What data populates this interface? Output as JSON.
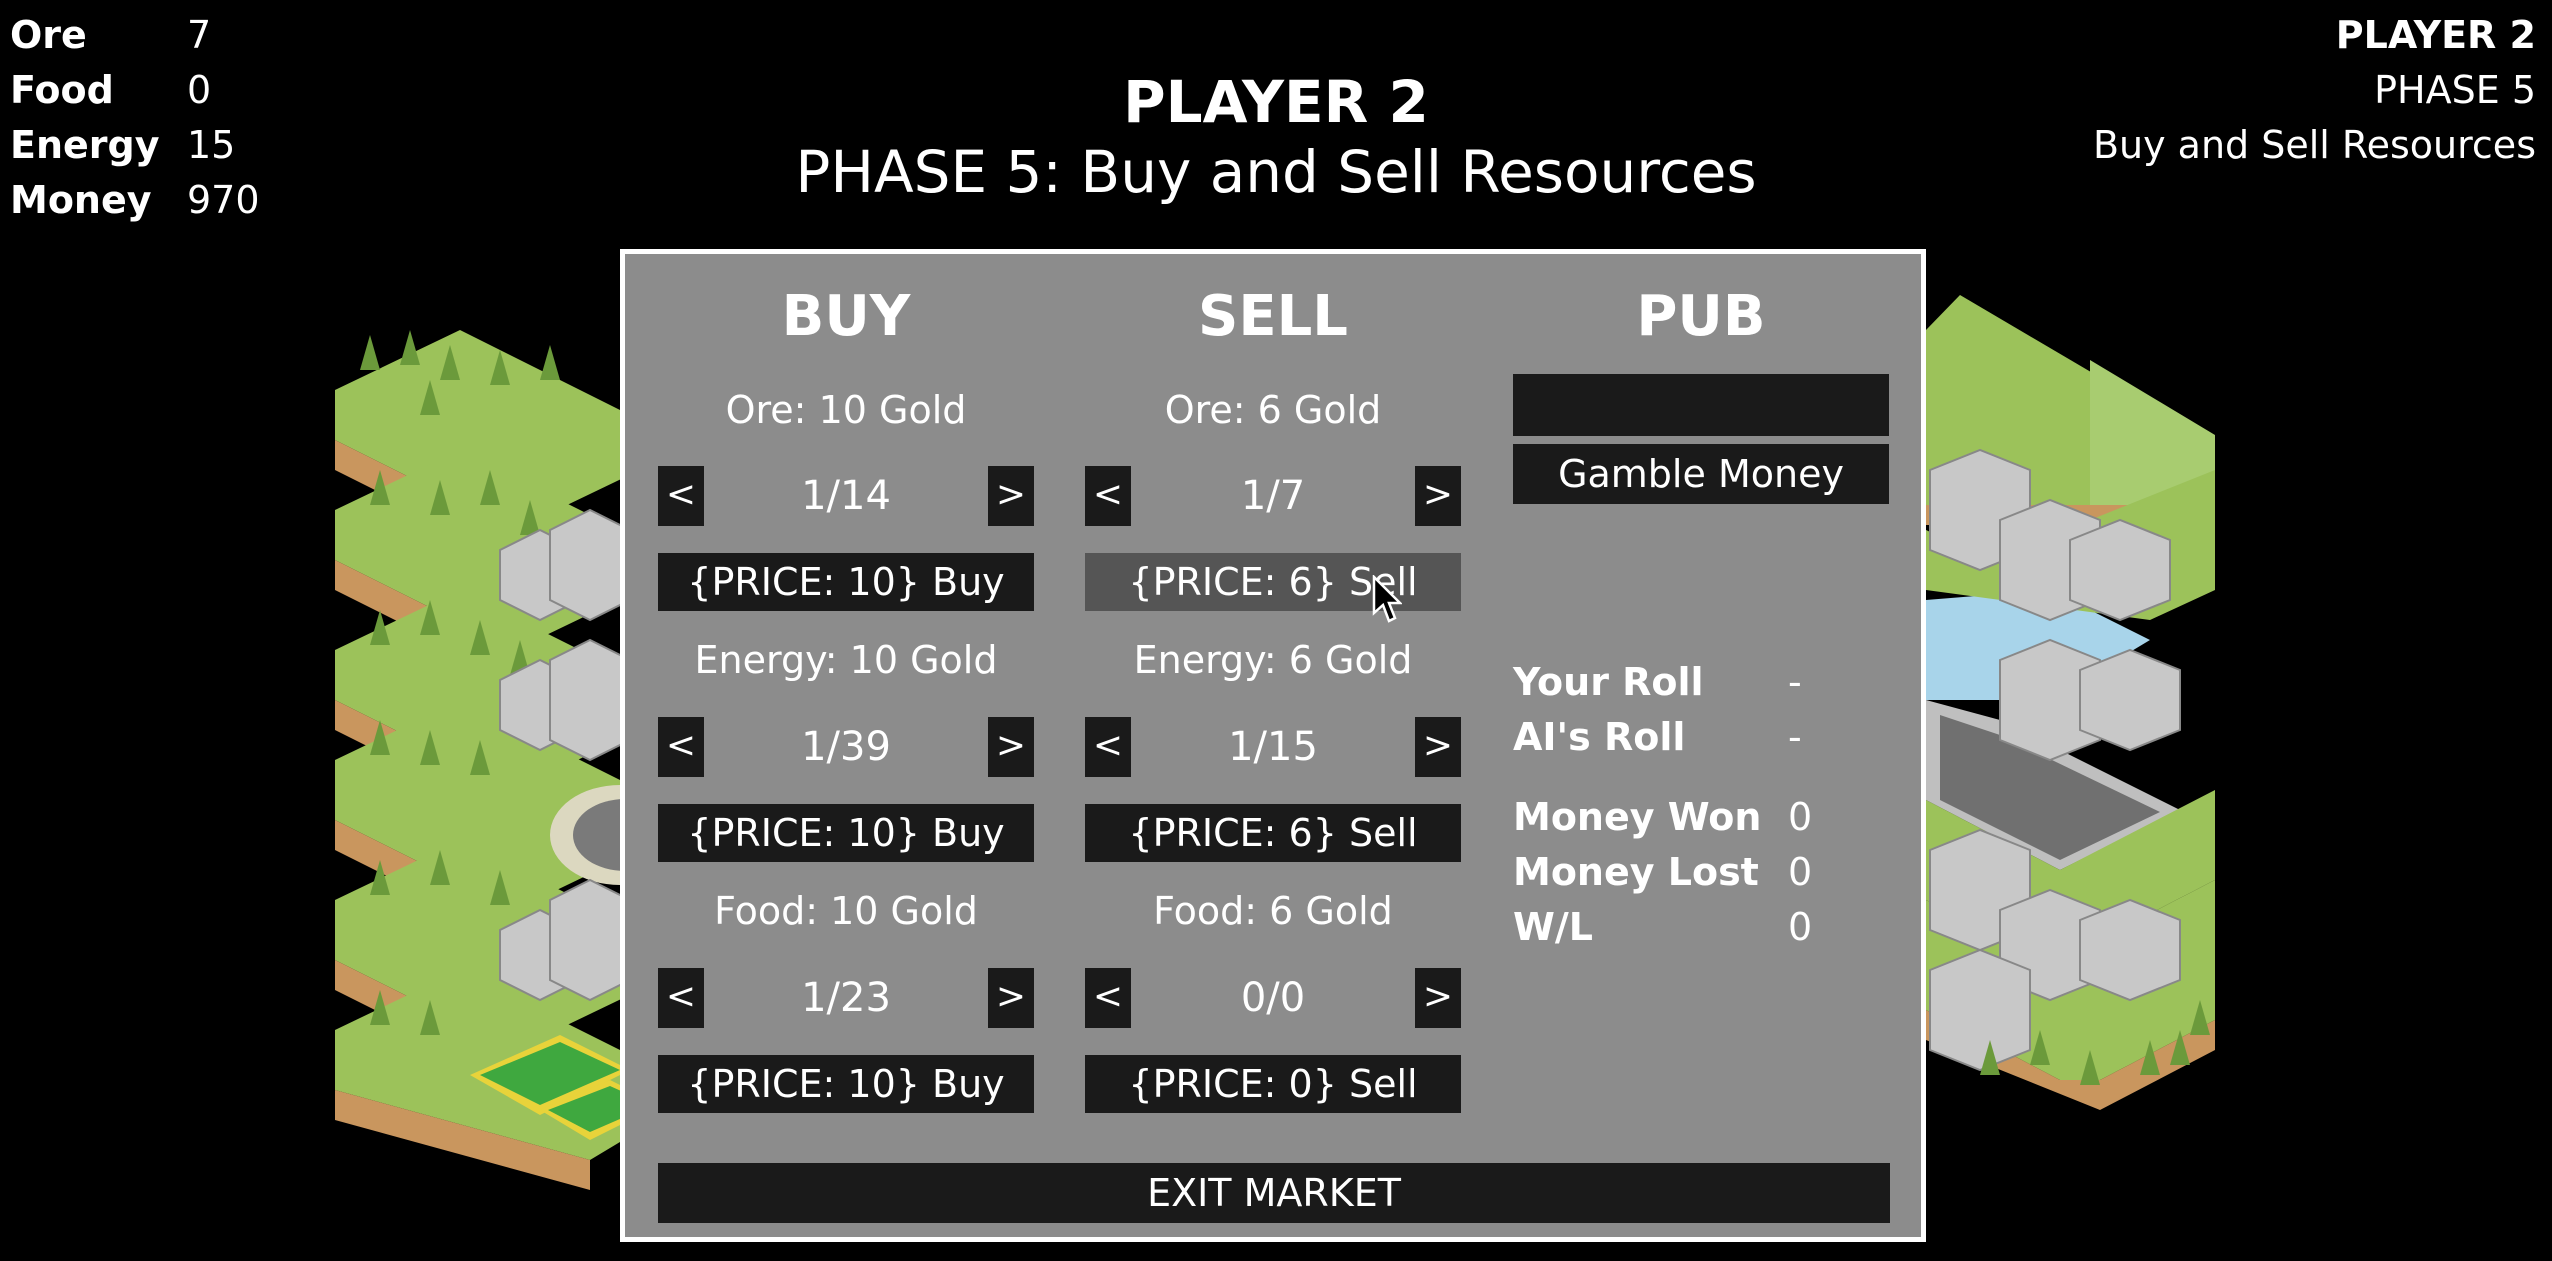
{
  "hud": {
    "stats": [
      {
        "label": "Ore",
        "value": "7"
      },
      {
        "label": "Food",
        "value": "0"
      },
      {
        "label": "Energy",
        "value": "15"
      },
      {
        "label": "Money",
        "value": "970"
      }
    ],
    "center_player": "PLAYER 2",
    "center_phase": "PHASE 5: Buy and Sell Resources",
    "right_player": "PLAYER 2",
    "right_phase": "PHASE 5",
    "right_phase_name": "Buy and Sell Resources"
  },
  "market": {
    "buy": {
      "heading": "BUY",
      "items": [
        {
          "label": "Ore: 10 Gold",
          "left": "<",
          "qty": "1/14",
          "right": ">",
          "action": "{PRICE: 10} Buy"
        },
        {
          "label": "Energy: 10 Gold",
          "left": "<",
          "qty": "1/39",
          "right": ">",
          "action": "{PRICE: 10} Buy"
        },
        {
          "label": "Food: 10 Gold",
          "left": "<",
          "qty": "1/23",
          "right": ">",
          "action": "{PRICE: 10} Buy"
        }
      ]
    },
    "sell": {
      "heading": "SELL",
      "items": [
        {
          "label": "Ore: 6 Gold",
          "left": "<",
          "qty": "1/7",
          "right": ">",
          "action": "{PRICE: 6} Sell"
        },
        {
          "label": "Energy: 6 Gold",
          "left": "<",
          "qty": "1/15",
          "right": ">",
          "action": "{PRICE: 6} Sell"
        },
        {
          "label": "Food: 6 Gold",
          "left": "<",
          "qty": "0/0",
          "right": ">",
          "action": "{PRICE: 0} Sell"
        }
      ]
    },
    "pub": {
      "heading": "PUB",
      "input_value": "",
      "gamble_label": "Gamble Money",
      "rows": [
        {
          "label": "Your Roll",
          "value": "-"
        },
        {
          "label": "AI's Roll",
          "value": "-"
        },
        {
          "label": "Money Won",
          "value": "0"
        },
        {
          "label": "Money Lost",
          "value": "0"
        },
        {
          "label": "W/L",
          "value": "0"
        }
      ]
    },
    "exit_label": "EXIT MARKET"
  },
  "colors": {
    "panel_bg": "#8c8c8c",
    "button_bg": "#1a1a1a",
    "button_hover": "#555555",
    "grass": "#9cc25a",
    "dirt": "#c9965e"
  }
}
